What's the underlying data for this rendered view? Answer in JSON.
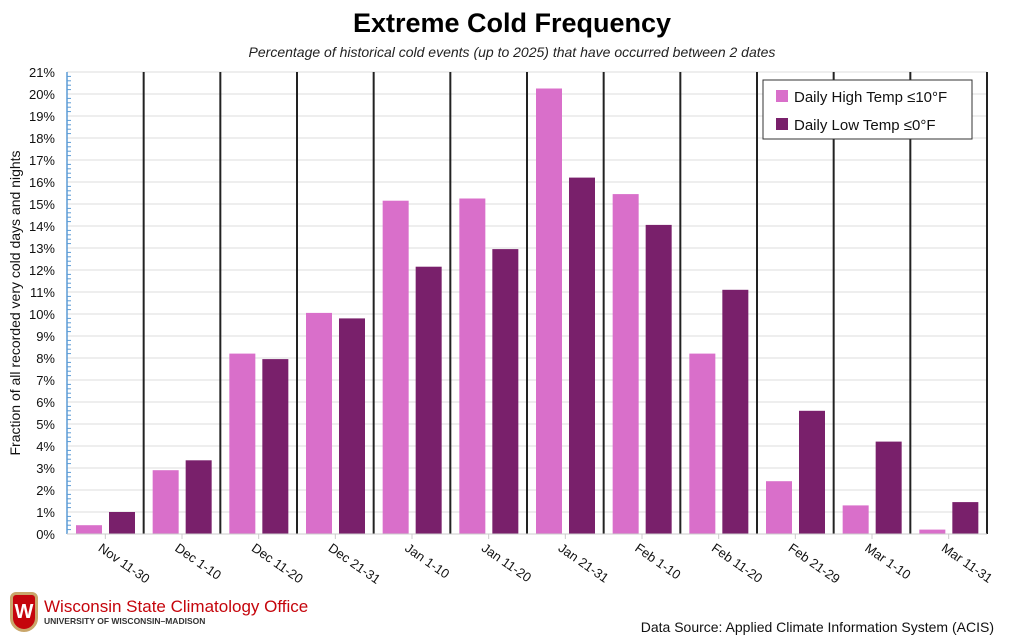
{
  "chart_data": {
    "type": "bar",
    "title": "Extreme Cold Frequency",
    "subtitle": "Percentage of historical cold events (up to 2025) that have occurred between 2 dates",
    "xlabel": "",
    "ylabel": "Fraction of all recorded very cold days and nights",
    "ylim": [
      0,
      21
    ],
    "yticks": [
      "0%",
      "1%",
      "2%",
      "3%",
      "4%",
      "5%",
      "6%",
      "7%",
      "8%",
      "9%",
      "10%",
      "11%",
      "12%",
      "13%",
      "14%",
      "15%",
      "16%",
      "17%",
      "18%",
      "19%",
      "20%",
      "21%"
    ],
    "categories": [
      "Nov 11-30",
      "Dec 1-10",
      "Dec 11-20",
      "Dec 21-31",
      "Jan 1-10",
      "Jan 11-20",
      "Jan 21-31",
      "Feb 1-10",
      "Feb 11-20",
      "Feb 21-29",
      "Mar 1-10",
      "Mar 11-31"
    ],
    "series": [
      {
        "name": "Daily High Temp ≤10°F",
        "color": "#d96fca",
        "values": [
          0.4,
          2.9,
          8.2,
          10.05,
          15.15,
          15.25,
          20.25,
          15.45,
          8.2,
          2.4,
          1.3,
          0.2
        ]
      },
      {
        "name": "Daily Low Temp ≤0°F",
        "color": "#79206b",
        "values": [
          1.0,
          3.35,
          7.95,
          9.8,
          12.15,
          12.95,
          16.2,
          14.05,
          11.1,
          5.6,
          4.2,
          1.45
        ]
      }
    ],
    "grid": true,
    "legend": "top-right"
  },
  "footer": {
    "org": "Wisconsin State Climatology Office",
    "university": "UNIVERSITY OF WISCONSIN–MADISON",
    "crest_letter": "W",
    "source": "Data Source: Applied Climate Information System (ACIS)"
  }
}
